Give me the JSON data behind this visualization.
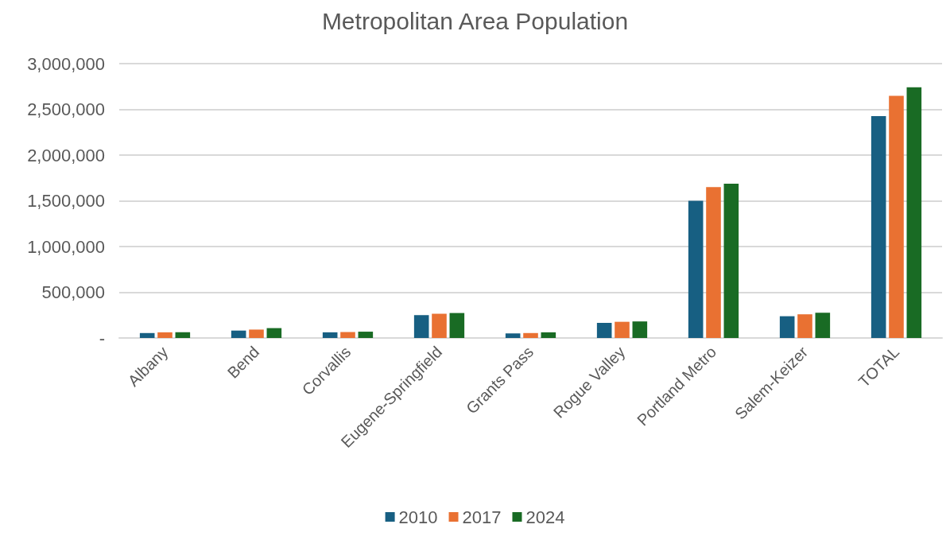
{
  "chart_data": {
    "type": "bar",
    "title": "Metropolitan Area Population",
    "categories": [
      "Albany",
      "Bend",
      "Corvallis",
      "Eugene-Springfield",
      "Grants Pass",
      "Rogue Valley",
      "Portland Metro",
      "Salem-Keizer",
      "TOTAL"
    ],
    "series": [
      {
        "name": "2010",
        "color": "#175f82",
        "values": [
          54000,
          81000,
          62000,
          250000,
          50000,
          165000,
          1500000,
          238000,
          2427000
        ]
      },
      {
        "name": "2017",
        "color": "#e97132",
        "values": [
          62000,
          92000,
          65000,
          265000,
          54000,
          177000,
          1651000,
          259000,
          2648000
        ]
      },
      {
        "name": "2024",
        "color": "#196b24",
        "values": [
          63000,
          108000,
          69000,
          273000,
          62000,
          181000,
          1686000,
          276000,
          2741000
        ]
      }
    ],
    "ylim": [
      0,
      3000000
    ],
    "yticks": [
      {
        "value": 0,
        "label": "-"
      },
      {
        "value": 500000,
        "label": "500,000"
      },
      {
        "value": 1000000,
        "label": "1,000,000"
      },
      {
        "value": 1500000,
        "label": "1,500,000"
      },
      {
        "value": 2000000,
        "label": "2,000,000"
      },
      {
        "value": 2500000,
        "label": "2,500,000"
      },
      {
        "value": 3000000,
        "label": "3,000,000"
      }
    ],
    "grid": "y",
    "legend": "bottom"
  }
}
